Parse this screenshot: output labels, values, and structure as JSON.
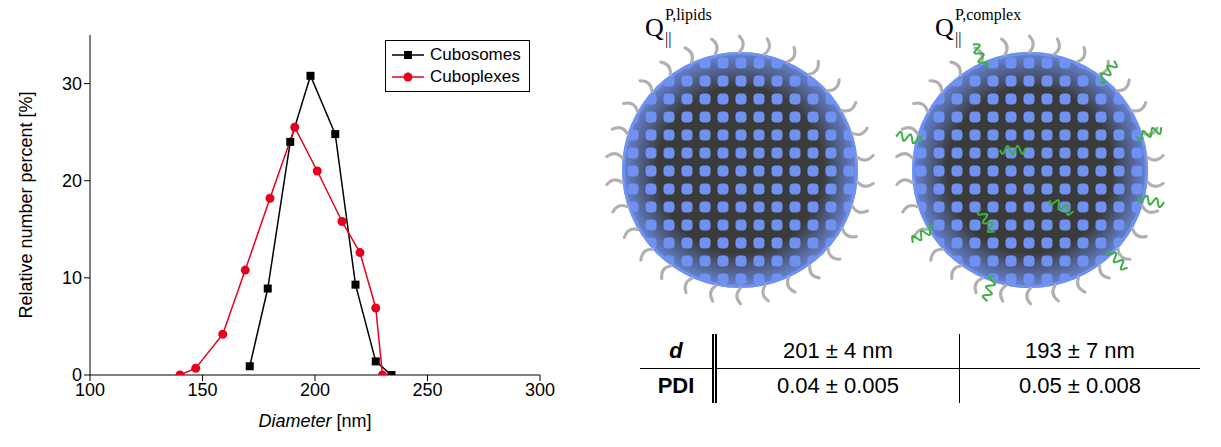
{
  "chart_data": {
    "type": "line",
    "x_label": "Diameter [nm]",
    "y_label": "Relative number percent [%]",
    "xlim": [
      100,
      300
    ],
    "xticks": [
      100,
      150,
      200,
      250,
      300
    ],
    "ylim": [
      0,
      35
    ],
    "yticks": [
      0,
      10,
      20,
      30
    ],
    "legend": "upper right",
    "series": [
      {
        "name": "Cubosomes",
        "color": "#000000",
        "marker": "square",
        "x": [
          171,
          179,
          189,
          198,
          209,
          218,
          227,
          234
        ],
        "values": [
          0.9,
          8.9,
          24,
          30.8,
          24.8,
          9.3,
          1.4,
          0
        ]
      },
      {
        "name": "Cuboplexes",
        "color": "#e8001c",
        "marker": "circle",
        "x": [
          140,
          147,
          159,
          169,
          180,
          191,
          201,
          212,
          220,
          227,
          230
        ],
        "values": [
          0,
          0.7,
          4.2,
          10.8,
          18.2,
          25.5,
          21,
          15.8,
          12.6,
          6.9,
          0
        ]
      }
    ]
  },
  "diagram": {
    "particles": [
      {
        "symbol": "Q",
        "superscript": "P,lipids",
        "subscript": "||"
      },
      {
        "symbol": "Q",
        "superscript": "P,complex",
        "subscript": "||"
      }
    ],
    "table": {
      "row_heads": [
        "d",
        "PDI"
      ],
      "rows": [
        [
          "201 ± 4 nm",
          "193 ± 7 nm"
        ],
        [
          "0.04 ± 0.005",
          "0.05 ± 0.008"
        ]
      ]
    }
  }
}
